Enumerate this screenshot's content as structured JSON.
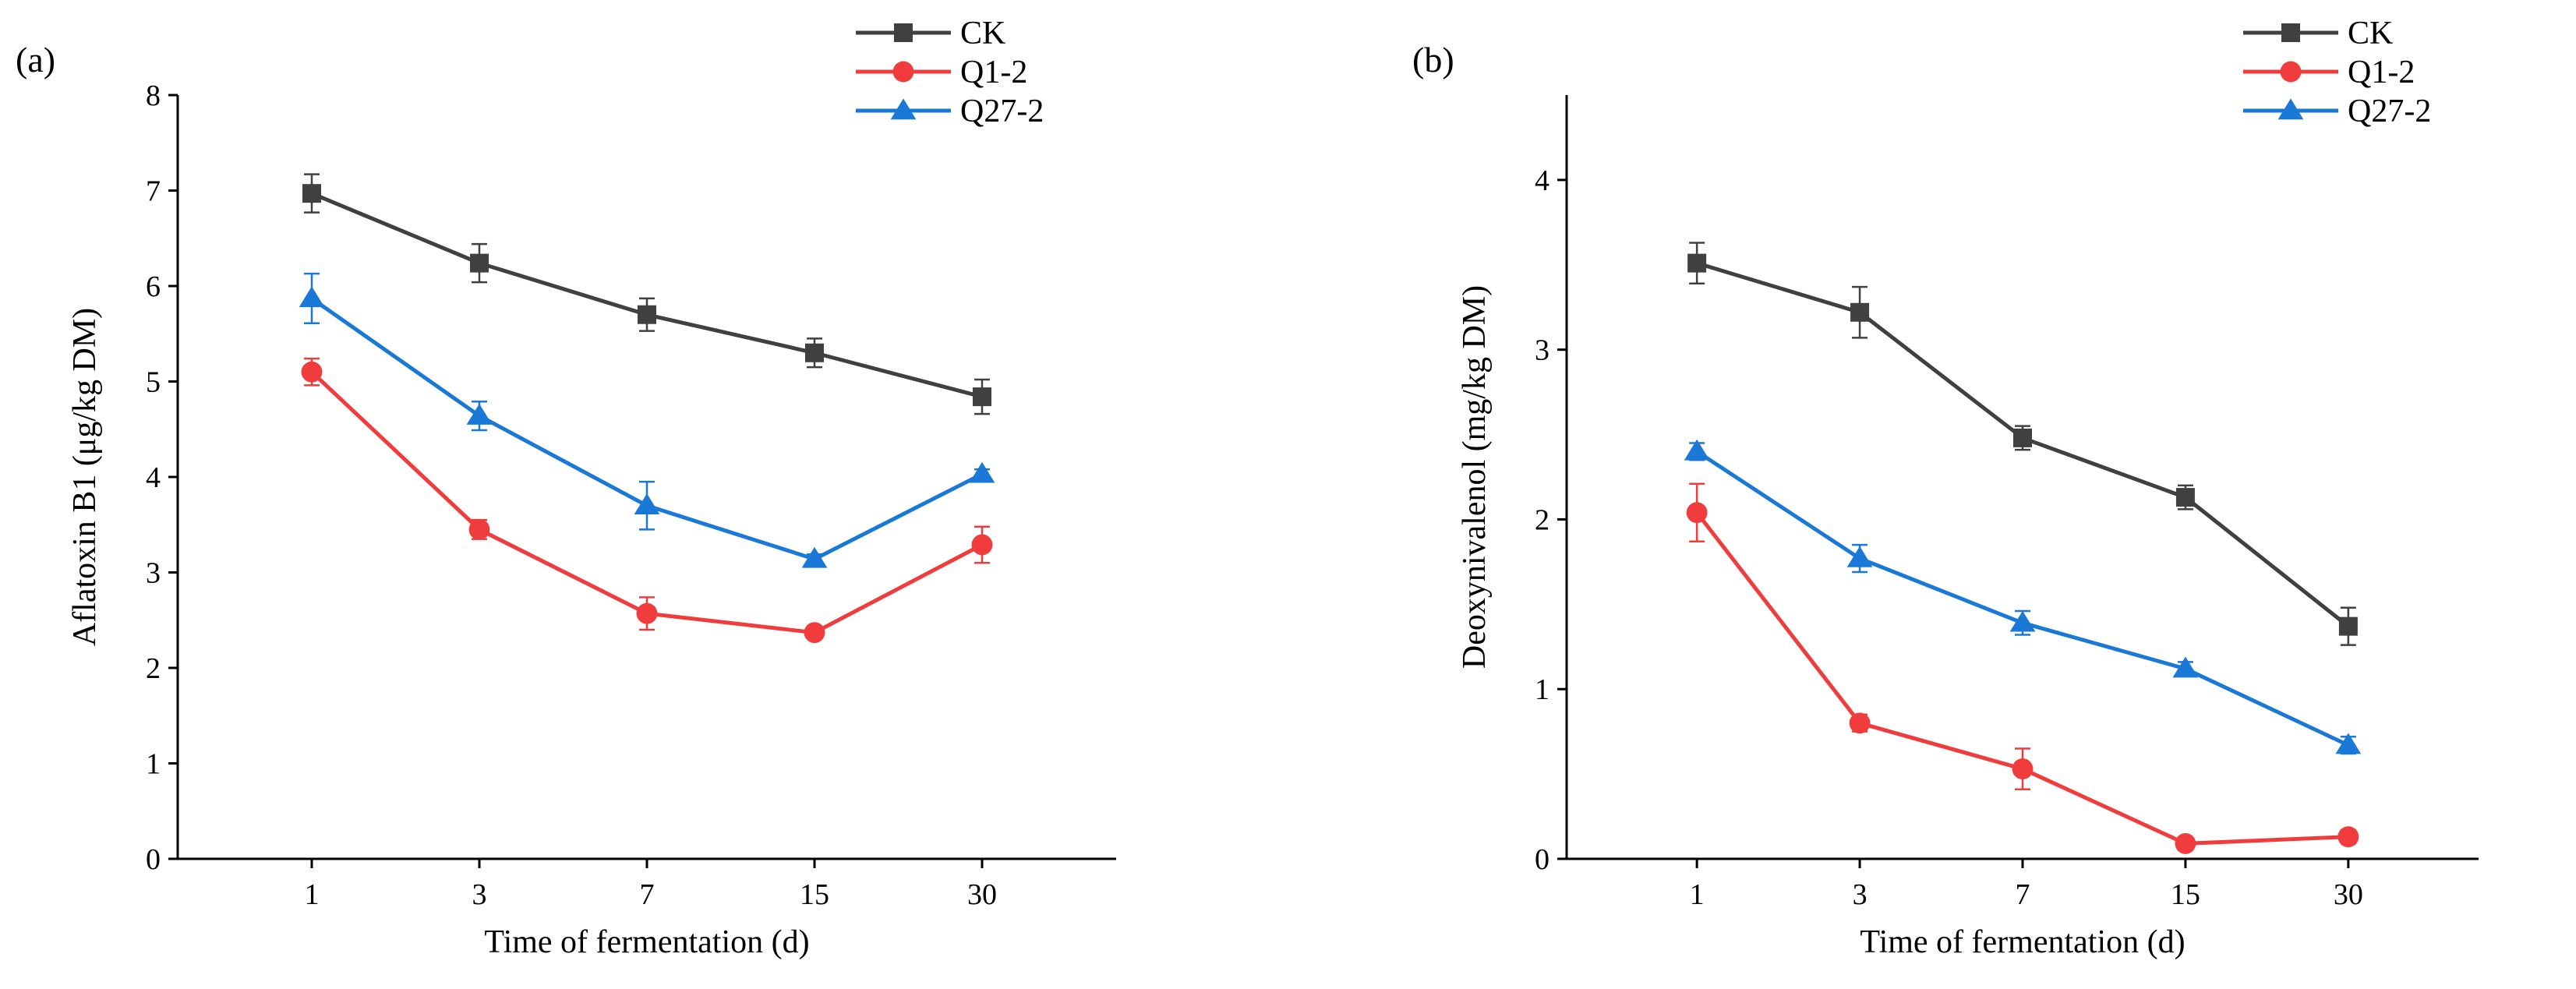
{
  "chart_data": [
    {
      "panel_label": "(a)",
      "type": "line",
      "title": "",
      "xlabel": "Time of fermentation (d)",
      "ylabel": "Aflatoxin B1 (μg/kg DM)",
      "categories": [
        "1",
        "3",
        "7",
        "15",
        "30"
      ],
      "ylim": [
        0,
        8
      ],
      "yticks": [
        "0",
        "1",
        "2",
        "3",
        "4",
        "5",
        "6",
        "7",
        "8"
      ],
      "grid": false,
      "legend_position": "top-right",
      "series": [
        {
          "name": "CK",
          "color": "#404040",
          "marker": "square",
          "values": [
            6.97,
            6.24,
            5.7,
            5.3,
            4.84
          ],
          "errors": [
            0.2,
            0.2,
            0.17,
            0.15,
            0.18
          ]
        },
        {
          "name": "Q1-2",
          "color": "#f03c3c",
          "marker": "circle",
          "values": [
            5.1,
            3.45,
            2.57,
            2.37,
            3.29
          ],
          "errors": [
            0.14,
            0.1,
            0.17,
            0.05,
            0.19
          ]
        },
        {
          "name": "Q27-2",
          "color": "#1a78d6",
          "marker": "triangle",
          "values": [
            5.87,
            4.64,
            3.7,
            3.14,
            4.03
          ],
          "errors": [
            0.26,
            0.15,
            0.25,
            0.05,
            0.05
          ]
        }
      ]
    },
    {
      "panel_label": "(b)",
      "type": "line",
      "title": "",
      "xlabel": "Time of fermentation (d)",
      "ylabel": "Deoxynivalenol (mg/kg DM)",
      "categories": [
        "1",
        "3",
        "7",
        "15",
        "30"
      ],
      "ylim": [
        0,
        4.5
      ],
      "yticks": [
        "0",
        "1",
        "2",
        "3",
        "4"
      ],
      "grid": false,
      "legend_position": "top-right",
      "series": [
        {
          "name": "CK",
          "color": "#404040",
          "marker": "square",
          "values": [
            3.51,
            3.22,
            2.48,
            2.13,
            1.37
          ],
          "errors": [
            0.12,
            0.15,
            0.07,
            0.07,
            0.11
          ]
        },
        {
          "name": "Q1-2",
          "color": "#f03c3c",
          "marker": "circle",
          "values": [
            2.04,
            0.8,
            0.53,
            0.09,
            0.13
          ],
          "errors": [
            0.17,
            0.05,
            0.12,
            0.02,
            0.04
          ]
        },
        {
          "name": "Q27-2",
          "color": "#1a78d6",
          "marker": "triangle",
          "values": [
            2.4,
            1.77,
            1.39,
            1.12,
            0.67
          ],
          "errors": [
            0.05,
            0.08,
            0.07,
            0.04,
            0.05
          ]
        }
      ]
    }
  ]
}
